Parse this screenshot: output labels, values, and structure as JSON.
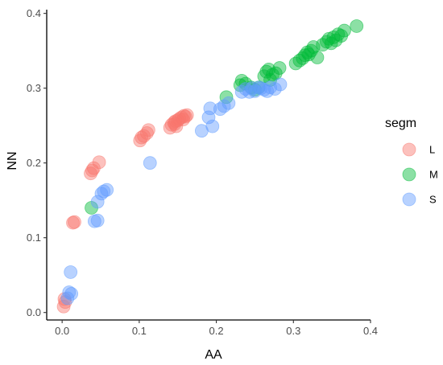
{
  "chart_data": {
    "type": "scatter",
    "title": "",
    "xlabel": "AA",
    "ylabel": "NN",
    "xlim": [
      -0.02,
      0.4
    ],
    "ylim": [
      -0.01,
      0.405
    ],
    "x_ticks": [
      0.0,
      0.1,
      0.2,
      0.3,
      0.4
    ],
    "x_tick_labels": [
      "0.0",
      "0.1",
      "0.2",
      "0.3",
      "0.4"
    ],
    "y_ticks": [
      0.0,
      0.1,
      0.2,
      0.3,
      0.4
    ],
    "y_tick_labels": [
      "0.0",
      "0.1",
      "0.2",
      "0.3",
      "0.4"
    ],
    "grid": false,
    "legend": {
      "title": "segm",
      "placement": "right"
    },
    "series": [
      {
        "name": "L",
        "color": "#F8766D",
        "points": [
          [
            0.002,
            0.008
          ],
          [
            0.004,
            0.014
          ],
          [
            0.003,
            0.018
          ],
          [
            0.014,
            0.12
          ],
          [
            0.016,
            0.121
          ],
          [
            0.037,
            0.186
          ],
          [
            0.039,
            0.19
          ],
          [
            0.041,
            0.193
          ],
          [
            0.048,
            0.201
          ],
          [
            0.101,
            0.23
          ],
          [
            0.103,
            0.234
          ],
          [
            0.106,
            0.236
          ],
          [
            0.11,
            0.24
          ],
          [
            0.112,
            0.244
          ],
          [
            0.14,
            0.247
          ],
          [
            0.142,
            0.251
          ],
          [
            0.145,
            0.254
          ],
          [
            0.147,
            0.256
          ],
          [
            0.15,
            0.257
          ],
          [
            0.148,
            0.249
          ],
          [
            0.152,
            0.259
          ],
          [
            0.155,
            0.261
          ],
          [
            0.158,
            0.263
          ],
          [
            0.16,
            0.262
          ],
          [
            0.162,
            0.264
          ],
          [
            0.157,
            0.258
          ],
          [
            0.146,
            0.252
          ]
        ]
      },
      {
        "name": "M",
        "color": "#00BA38",
        "points": [
          [
            0.038,
            0.14
          ],
          [
            0.213,
            0.288
          ],
          [
            0.231,
            0.304
          ],
          [
            0.233,
            0.31
          ],
          [
            0.238,
            0.306
          ],
          [
            0.245,
            0.301
          ],
          [
            0.25,
            0.298
          ],
          [
            0.255,
            0.301
          ],
          [
            0.262,
            0.316
          ],
          [
            0.265,
            0.322
          ],
          [
            0.268,
            0.325
          ],
          [
            0.27,
            0.311
          ],
          [
            0.273,
            0.318
          ],
          [
            0.277,
            0.32
          ],
          [
            0.282,
            0.327
          ],
          [
            0.303,
            0.333
          ],
          [
            0.308,
            0.337
          ],
          [
            0.312,
            0.34
          ],
          [
            0.315,
            0.344
          ],
          [
            0.318,
            0.348
          ],
          [
            0.32,
            0.345
          ],
          [
            0.323,
            0.35
          ],
          [
            0.326,
            0.355
          ],
          [
            0.331,
            0.341
          ],
          [
            0.338,
            0.358
          ],
          [
            0.343,
            0.362
          ],
          [
            0.346,
            0.366
          ],
          [
            0.349,
            0.36
          ],
          [
            0.352,
            0.368
          ],
          [
            0.355,
            0.364
          ],
          [
            0.358,
            0.372
          ],
          [
            0.362,
            0.37
          ],
          [
            0.366,
            0.377
          ],
          [
            0.382,
            0.383
          ]
        ]
      },
      {
        "name": "S",
        "color": "#619CFF",
        "points": [
          [
            0.007,
            0.019
          ],
          [
            0.009,
            0.027
          ],
          [
            0.011,
            0.054
          ],
          [
            0.012,
            0.025
          ],
          [
            0.042,
            0.122
          ],
          [
            0.046,
            0.123
          ],
          [
            0.046,
            0.148
          ],
          [
            0.051,
            0.159
          ],
          [
            0.054,
            0.162
          ],
          [
            0.058,
            0.164
          ],
          [
            0.114,
            0.2
          ],
          [
            0.181,
            0.243
          ],
          [
            0.19,
            0.261
          ],
          [
            0.192,
            0.273
          ],
          [
            0.195,
            0.249
          ],
          [
            0.205,
            0.272
          ],
          [
            0.21,
            0.276
          ],
          [
            0.216,
            0.28
          ],
          [
            0.233,
            0.295
          ],
          [
            0.238,
            0.299
          ],
          [
            0.243,
            0.295
          ],
          [
            0.246,
            0.3
          ],
          [
            0.25,
            0.296
          ],
          [
            0.255,
            0.301
          ],
          [
            0.258,
            0.3
          ],
          [
            0.262,
            0.298
          ],
          [
            0.266,
            0.296
          ],
          [
            0.27,
            0.301
          ],
          [
            0.276,
            0.299
          ],
          [
            0.283,
            0.305
          ]
        ]
      }
    ]
  }
}
